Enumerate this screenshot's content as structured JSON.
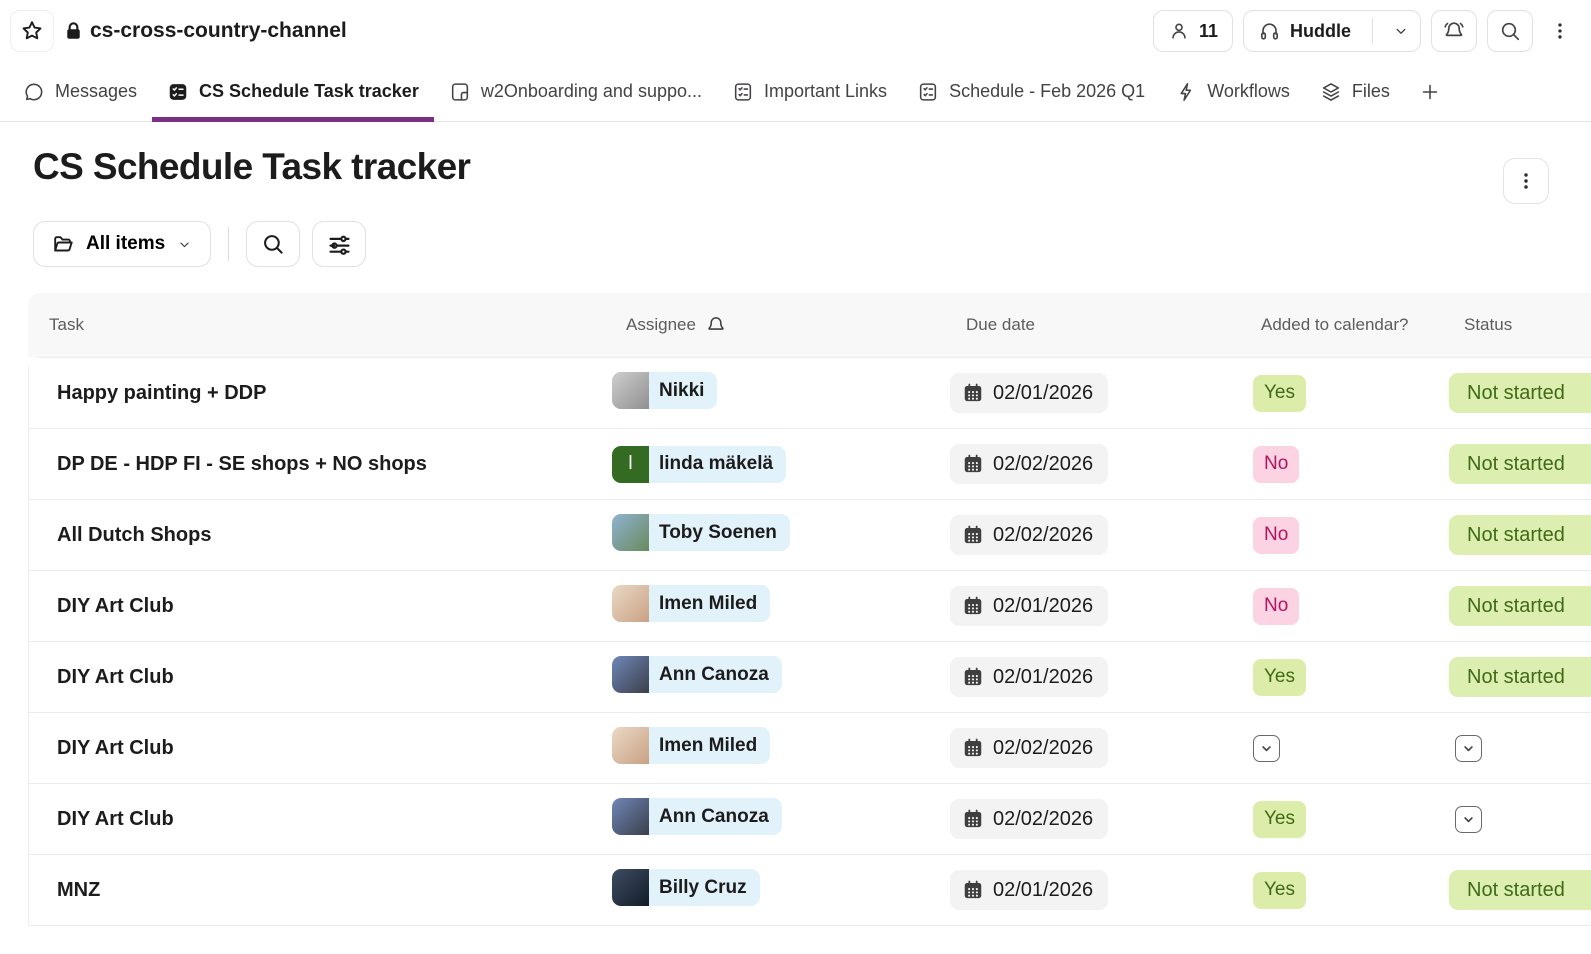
{
  "colors": {
    "accent_purple": "#7c3085",
    "assignee_chip_bg": "#e1f2fa",
    "due_chip_bg": "#f3f3f3",
    "yes_badge_bg": "#dcedaa",
    "yes_badge_text": "#3f6a16",
    "no_badge_bg": "#fbd3e2",
    "no_badge_text": "#b5135f",
    "status_badge_bg": "#ddeeb1",
    "status_badge_text": "#3f6a16"
  },
  "channel_header": {
    "title": "cs-cross-country-channel",
    "member_count": "11",
    "huddle_label": "Huddle"
  },
  "tabs": [
    {
      "label": "Messages",
      "icon": "message-icon",
      "active": false
    },
    {
      "label": "CS Schedule Task tracker",
      "icon": "list-check-icon",
      "active": true
    },
    {
      "label": "w2Onboarding and suppo...",
      "icon": "canvas-icon",
      "active": false
    },
    {
      "label": "Important Links",
      "icon": "canvas-checklist-icon",
      "active": false
    },
    {
      "label": "Schedule - Feb 2026 Q1",
      "icon": "canvas-checklist-icon",
      "active": false
    },
    {
      "label": "Workflows",
      "icon": "bolt-icon",
      "active": false
    },
    {
      "label": "Files",
      "icon": "layers-icon",
      "active": false
    }
  ],
  "page": {
    "title": "CS Schedule Task tracker"
  },
  "filter_bar": {
    "all_items_label": "All items"
  },
  "table": {
    "headers": {
      "task": "Task",
      "assignee": "Assignee",
      "due_date": "Due date",
      "added_to_calendar": "Added to calendar?",
      "status": "Status"
    },
    "rows": [
      {
        "task": "Happy painting + DDP",
        "assignee": {
          "name": "Nikki",
          "avatar": {
            "kind": "photo",
            "gradient": [
              "#cfcfcf",
              "#8f8f8f"
            ]
          }
        },
        "due_date": "02/01/2026",
        "added_to_calendar": "Yes",
        "status": "Not started"
      },
      {
        "task": "DP DE - HDP FI - SE shops + NO shops",
        "assignee": {
          "name": "linda mäkelä",
          "avatar": {
            "kind": "initial",
            "bg": "#336b22",
            "initial": "l"
          }
        },
        "due_date": "02/02/2026",
        "added_to_calendar": "No",
        "status": "Not started"
      },
      {
        "task": "All Dutch Shops",
        "assignee": {
          "name": "Toby Soenen",
          "avatar": {
            "kind": "photo",
            "gradient": [
              "#8fb3d1",
              "#6b8a5e"
            ]
          }
        },
        "due_date": "02/02/2026",
        "added_to_calendar": "No",
        "status": "Not started"
      },
      {
        "task": "DIY Art Club",
        "assignee": {
          "name": "Imen Miled",
          "avatar": {
            "kind": "photo",
            "gradient": [
              "#ead9c6",
              "#c9a184"
            ]
          }
        },
        "due_date": "02/01/2026",
        "added_to_calendar": "No",
        "status": "Not started"
      },
      {
        "task": "DIY Art Club",
        "assignee": {
          "name": "Ann Canoza",
          "avatar": {
            "kind": "photo",
            "gradient": [
              "#6f87b8",
              "#3b3f4a"
            ]
          }
        },
        "due_date": "02/01/2026",
        "added_to_calendar": "Yes",
        "status": "Not started"
      },
      {
        "task": "DIY Art Club",
        "assignee": {
          "name": "Imen Miled",
          "avatar": {
            "kind": "photo",
            "gradient": [
              "#ead9c6",
              "#c9a184"
            ]
          }
        },
        "due_date": "02/02/2026",
        "added_to_calendar": "",
        "status": ""
      },
      {
        "task": "DIY Art Club",
        "assignee": {
          "name": "Ann Canoza",
          "avatar": {
            "kind": "photo",
            "gradient": [
              "#6f87b8",
              "#3b3f4a"
            ]
          }
        },
        "due_date": "02/02/2026",
        "added_to_calendar": "Yes",
        "status": ""
      },
      {
        "task": "MNZ",
        "assignee": {
          "name": "Billy Cruz",
          "avatar": {
            "kind": "photo",
            "gradient": [
              "#3c4d63",
              "#141d29"
            ]
          }
        },
        "due_date": "02/01/2026",
        "added_to_calendar": "Yes",
        "status": "Not started"
      }
    ]
  }
}
